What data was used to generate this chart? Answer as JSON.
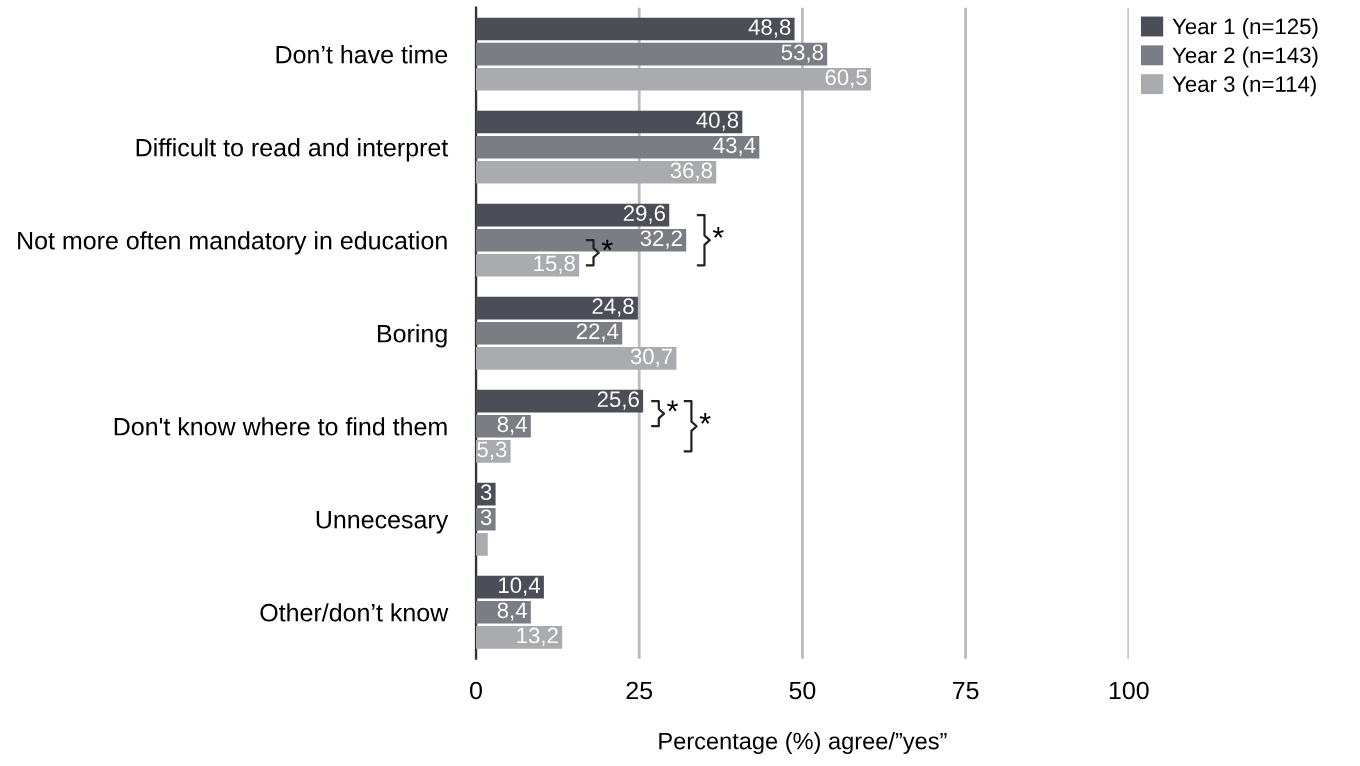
{
  "chart_data": {
    "type": "bar",
    "orientation": "horizontal",
    "categories": [
      "Don’t have time",
      "Difficult to read and interpret",
      "Not more often mandatory in education",
      "Boring",
      "Don't know where to find them",
      "Unnecesary",
      "Other/don’t know"
    ],
    "series": [
      {
        "name": "Year 1 (n=125)",
        "color": "#4b4e56",
        "values": [
          48.8,
          40.8,
          29.6,
          24.8,
          25.6,
          3,
          10.4
        ],
        "value_labels": [
          "48,8",
          "40,8",
          "29,6",
          "24,8",
          "25,6",
          "3",
          "10,4"
        ]
      },
      {
        "name": "Year 2 (n=143)",
        "color": "#7b7d85",
        "values": [
          53.8,
          43.4,
          32.2,
          22.4,
          8.4,
          3,
          8.4
        ],
        "value_labels": [
          "53,8",
          "43,4",
          "32,2",
          "22,4",
          "8,4",
          "3",
          "8,4"
        ]
      },
      {
        "name": "Year 3 (n=114)",
        "color": "#a9abaf",
        "values": [
          60.5,
          36.8,
          15.8,
          30.7,
          5.3,
          1.8,
          13.2
        ],
        "value_labels": [
          "60,5",
          "36,8",
          "15,8",
          "30,7",
          "5,3",
          null,
          "13,2"
        ]
      }
    ],
    "xlim": [
      0,
      100
    ],
    "xticks": [
      0,
      25,
      50,
      75,
      100
    ],
    "grid": "x",
    "xlabel": "Percentage (%) agree/”yes”",
    "legend": "top right",
    "annotations": [
      "*",
      "*",
      "*",
      "*"
    ]
  }
}
